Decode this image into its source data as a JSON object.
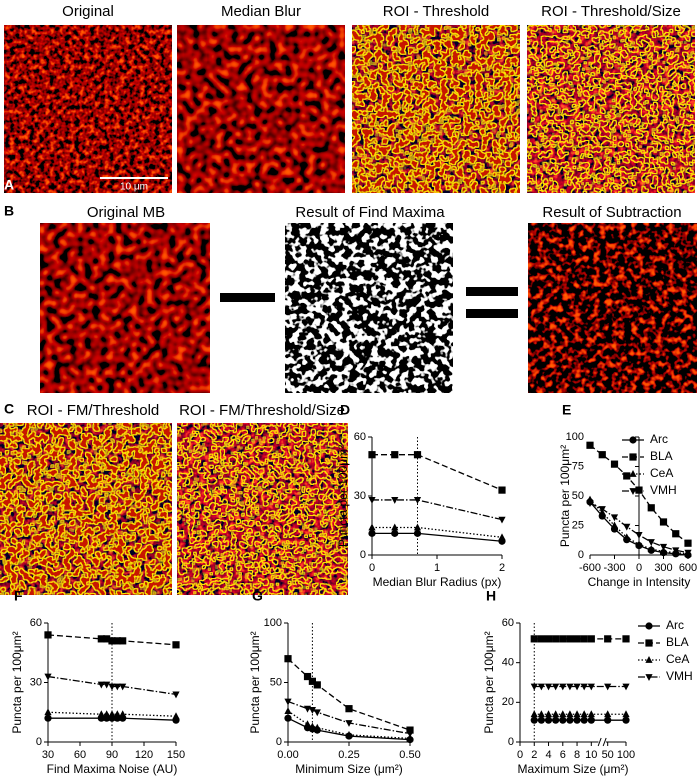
{
  "figure": {
    "A": {
      "label": "A",
      "titles": [
        "Original",
        "Median Blur",
        "ROI - Threshold",
        "ROI - Threshold/Size"
      ],
      "scale_bar": "10 μm"
    },
    "B": {
      "label": "B",
      "titles": [
        "Original MB",
        "Result of Find Maxima",
        "Result of Subtraction"
      ]
    },
    "C": {
      "label": "C",
      "titles": [
        "ROI - FM/Threshold",
        "ROI - FM/Threshold/Size"
      ]
    }
  },
  "chart_data": [
    {
      "type": "line",
      "label": "D",
      "ylabel": "Puncta per 100μm²",
      "xlabel": "Median Blur Radius (px)",
      "x": [
        0,
        0.35,
        0.7,
        2
      ],
      "xlim": [
        0,
        2
      ],
      "xticks": [
        0,
        1,
        2
      ],
      "ylim": [
        0,
        60
      ],
      "yticks": [
        0,
        30,
        60
      ],
      "vline": 0.7,
      "color": "#000000",
      "series": [
        {
          "marker": "circle",
          "dash": "solid",
          "values": [
            11,
            11,
            11,
            7
          ]
        },
        {
          "marker": "square",
          "dash": "dashed",
          "values": [
            51,
            51,
            51,
            33
          ]
        },
        {
          "marker": "triangle-up",
          "dash": "dotted",
          "values": [
            14,
            14,
            14,
            9
          ]
        },
        {
          "marker": "triangle-down",
          "dash": "dashdot",
          "values": [
            28,
            28,
            28,
            18
          ]
        }
      ]
    },
    {
      "type": "line",
      "label": "E",
      "ylabel": "Puncta per 100μm²",
      "xlabel": "Change in Intensity",
      "x": [
        -600,
        -450,
        -300,
        -150,
        0,
        150,
        300,
        450,
        600
      ],
      "xlim": [
        -600,
        600
      ],
      "xticks": [
        -600,
        -300,
        0,
        300,
        600
      ],
      "ylim": [
        0,
        100
      ],
      "yticks": [
        0,
        25,
        50,
        75,
        100
      ],
      "y_axis_at_x": 0,
      "legend": true,
      "color": "#000000",
      "series": [
        {
          "name": "Arc",
          "marker": "circle",
          "dash": "solid",
          "values": [
            45,
            33,
            22,
            13,
            8,
            4,
            2,
            1,
            0
          ]
        },
        {
          "name": "BLA",
          "marker": "square",
          "dash": "dashed",
          "values": [
            93,
            85,
            77,
            67,
            55,
            40,
            28,
            18,
            10
          ]
        },
        {
          "name": "CeA",
          "marker": "triangle-up",
          "dash": "dotted",
          "values": [
            47,
            36,
            25,
            15,
            9,
            5,
            3,
            2,
            1
          ]
        },
        {
          "name": "VMH",
          "marker": "triangle-down",
          "dash": "dashdot",
          "values": [
            44,
            39,
            32,
            24,
            17,
            11,
            7,
            4,
            2
          ]
        }
      ]
    },
    {
      "type": "line",
      "label": "F",
      "ylabel": "Puncta per 100μm²",
      "xlabel": "Find Maxima Noise (AU)",
      "x": [
        30,
        80,
        85,
        90,
        95,
        100,
        150
      ],
      "xlim": [
        30,
        150
      ],
      "xticks": [
        30,
        60,
        90,
        120,
        150
      ],
      "ylim": [
        0,
        60
      ],
      "yticks": [
        0,
        30,
        60
      ],
      "vline": 90,
      "color": "#000000",
      "series": [
        {
          "marker": "circle",
          "dash": "solid",
          "values": [
            12,
            12,
            12,
            12,
            12,
            12,
            11
          ]
        },
        {
          "marker": "square",
          "dash": "dashed",
          "values": [
            54,
            52,
            52,
            51,
            51,
            51,
            49
          ]
        },
        {
          "marker": "triangle-up",
          "dash": "dotted",
          "values": [
            15,
            14,
            14,
            14,
            14,
            14,
            13
          ]
        },
        {
          "marker": "triangle-down",
          "dash": "dashdot",
          "values": [
            33,
            29,
            29,
            28,
            28,
            28,
            24
          ]
        }
      ]
    },
    {
      "type": "line",
      "label": "G",
      "ylabel": "Puncta per 100μm²",
      "xlabel": "Minimum Size (μm²)",
      "x": [
        0,
        0.08,
        0.1,
        0.12,
        0.25,
        0.5
      ],
      "xlim": [
        0,
        0.5
      ],
      "xticks": [
        {
          "value": 0,
          "label": "0.00"
        },
        {
          "value": 0.25,
          "label": "0.25"
        },
        {
          "value": 0.5,
          "label": "0.50"
        }
      ],
      "ylim": [
        0,
        100
      ],
      "yticks": [
        0,
        50,
        100
      ],
      "vline": 0.1,
      "color": "#000000",
      "series": [
        {
          "marker": "circle",
          "dash": "solid",
          "values": [
            20,
            12,
            11,
            10,
            5,
            2
          ]
        },
        {
          "marker": "square",
          "dash": "dashed",
          "values": [
            70,
            55,
            51,
            48,
            28,
            10
          ]
        },
        {
          "marker": "triangle-up",
          "dash": "dotted",
          "values": [
            26,
            15,
            13,
            12,
            6,
            3
          ]
        },
        {
          "marker": "triangle-down",
          "dash": "dashdot",
          "values": [
            34,
            28,
            27,
            25,
            16,
            7
          ]
        }
      ]
    },
    {
      "type": "line",
      "label": "H",
      "ylabel": "Puncta per 100μm²",
      "xlabel": "Maximum Size (μm²)",
      "x": [
        2,
        3,
        4,
        5,
        6,
        7,
        8,
        9,
        10,
        50,
        100
      ],
      "xlim": [
        0,
        100
      ],
      "xbreak": [
        11,
        45
      ],
      "xticks": [
        0,
        2,
        4,
        6,
        8,
        10,
        50,
        100
      ],
      "ylim": [
        0,
        60
      ],
      "yticks": [
        0,
        20,
        40,
        60
      ],
      "vline": 2,
      "legend": true,
      "color": "#000000",
      "series": [
        {
          "name": "Arc",
          "marker": "circle",
          "dash": "solid",
          "values": [
            11,
            11,
            11,
            11,
            11,
            11,
            11,
            11,
            11,
            11,
            11
          ]
        },
        {
          "name": "BLA",
          "marker": "square",
          "dash": "dashed",
          "values": [
            52,
            52,
            52,
            52,
            52,
            52,
            52,
            52,
            52,
            52,
            52
          ]
        },
        {
          "name": "CeA",
          "marker": "triangle-up",
          "dash": "dotted",
          "values": [
            14,
            14,
            14,
            14,
            14,
            14,
            14,
            14,
            14,
            14,
            14
          ]
        },
        {
          "name": "VMH",
          "marker": "triangle-down",
          "dash": "dashdot",
          "values": [
            28,
            28,
            28,
            28,
            28,
            28,
            28,
            28,
            28,
            28,
            28
          ]
        }
      ]
    }
  ]
}
